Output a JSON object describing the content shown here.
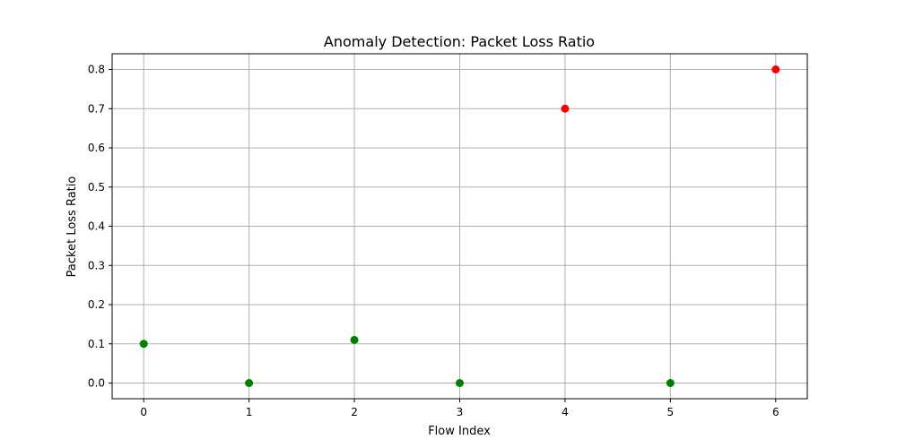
{
  "chart_data": {
    "type": "scatter",
    "title": "Anomaly Detection: Packet Loss Ratio",
    "xlabel": "Flow Index",
    "ylabel": "Packet Loss Ratio",
    "xlim": [
      -0.3,
      6.3
    ],
    "ylim": [
      -0.04,
      0.84
    ],
    "xticks": [
      "0",
      "1",
      "2",
      "3",
      "4",
      "5",
      "6"
    ],
    "yticks": [
      "0.0",
      "0.1",
      "0.2",
      "0.3",
      "0.4",
      "0.5",
      "0.6",
      "0.7",
      "0.8"
    ],
    "grid": true,
    "colors": {
      "normal": "#008000",
      "anomaly": "#ff0000"
    },
    "points": [
      {
        "x": 0,
        "y": 0.1,
        "status": "normal"
      },
      {
        "x": 1,
        "y": 0.0,
        "status": "normal"
      },
      {
        "x": 2,
        "y": 0.11,
        "status": "normal"
      },
      {
        "x": 3,
        "y": 0.0,
        "status": "normal"
      },
      {
        "x": 4,
        "y": 0.7,
        "status": "anomaly"
      },
      {
        "x": 5,
        "y": 0.0,
        "status": "normal"
      },
      {
        "x": 6,
        "y": 0.8,
        "status": "anomaly"
      }
    ]
  }
}
